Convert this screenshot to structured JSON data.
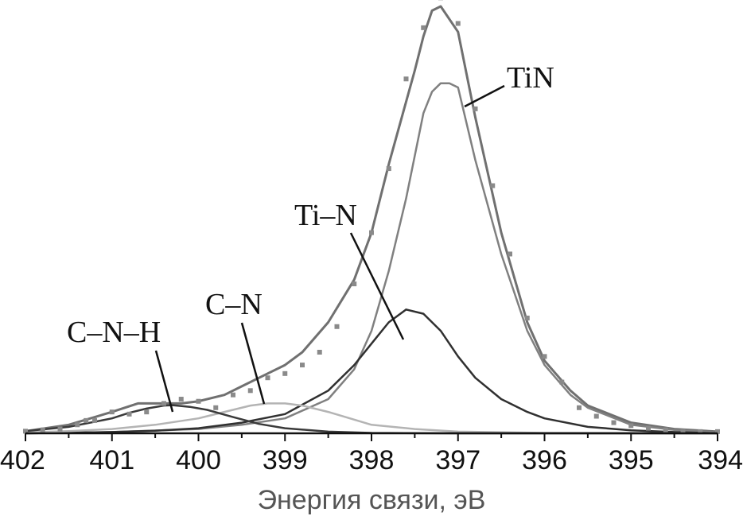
{
  "chart_data": {
    "type": "line",
    "xlabel": "Энергия связи, эВ",
    "ylabel": "",
    "xlim": [
      402,
      394
    ],
    "ylim": [
      0,
      1
    ],
    "grid": false,
    "x_reversed": true,
    "x_ticks": [
      402,
      401,
      400,
      399,
      398,
      397,
      396,
      395,
      394
    ],
    "tick_labels": [
      "402",
      "401",
      "400",
      "399",
      "398",
      "397",
      "396",
      "395",
      "394"
    ],
    "series": [
      {
        "name": "TiN",
        "role": "envelope",
        "color": "#707070",
        "x": [
          402,
          401.5,
          401,
          400.7,
          400.5,
          400.2,
          400,
          399.7,
          399.5,
          399.2,
          399,
          398.8,
          398.5,
          398.2,
          398,
          397.8,
          397.5,
          397.4,
          397.3,
          397.2,
          397.0,
          396.8,
          396.5,
          396.2,
          396,
          395.7,
          395.5,
          395,
          394.5,
          394
        ],
        "values": [
          0.005,
          0.02,
          0.05,
          0.07,
          0.07,
          0.07,
          0.075,
          0.09,
          0.11,
          0.14,
          0.16,
          0.19,
          0.26,
          0.36,
          0.47,
          0.63,
          0.85,
          0.93,
          0.99,
          1.0,
          0.94,
          0.74,
          0.47,
          0.26,
          0.17,
          0.1,
          0.065,
          0.025,
          0.01,
          0.004
        ]
      },
      {
        "name": "",
        "role": "TiN component",
        "color": "#808080",
        "x": [
          402,
          401,
          400,
          399.5,
          399,
          398.5,
          398.2,
          398,
          397.8,
          397.6,
          397.4,
          397.3,
          397.2,
          397.1,
          397.0,
          396.8,
          396.5,
          396.2,
          396,
          395.7,
          395.5,
          395,
          394.5,
          394
        ],
        "values": [
          0.0,
          0.003,
          0.01,
          0.02,
          0.035,
          0.08,
          0.15,
          0.24,
          0.38,
          0.55,
          0.75,
          0.8,
          0.82,
          0.82,
          0.81,
          0.64,
          0.42,
          0.24,
          0.16,
          0.09,
          0.06,
          0.02,
          0.008,
          0.002
        ]
      },
      {
        "name": "Ti–N",
        "role": "component",
        "color": "#303030",
        "x": [
          402,
          401,
          400.5,
          400,
          399.5,
          399,
          398.5,
          398.2,
          398,
          397.8,
          397.6,
          397.4,
          397.2,
          397,
          396.8,
          396.5,
          396.2,
          396,
          395.5,
          395,
          394.5,
          394
        ],
        "values": [
          0.0,
          0.003,
          0.006,
          0.012,
          0.025,
          0.045,
          0.1,
          0.16,
          0.21,
          0.26,
          0.29,
          0.28,
          0.24,
          0.18,
          0.13,
          0.08,
          0.05,
          0.035,
          0.015,
          0.007,
          0.003,
          0.0
        ]
      },
      {
        "name": "C–N",
        "role": "component",
        "color": "#b4b4b4",
        "x": [
          402,
          401.5,
          401,
          400.5,
          400,
          399.7,
          399.4,
          399.2,
          399.0,
          398.8,
          398.5,
          398.2,
          398,
          397.5,
          397,
          396,
          394
        ],
        "values": [
          0.002,
          0.005,
          0.01,
          0.02,
          0.035,
          0.05,
          0.065,
          0.07,
          0.07,
          0.065,
          0.05,
          0.032,
          0.02,
          0.01,
          0.004,
          0.001,
          0.0
        ]
      },
      {
        "name": "C–N–H",
        "role": "component",
        "color": "#3a3a3a",
        "x": [
          402,
          401.5,
          401,
          400.8,
          400.6,
          400.4,
          400.3,
          400.1,
          399.9,
          399.6,
          399.3,
          399,
          398.5,
          398,
          397,
          394
        ],
        "values": [
          0.005,
          0.015,
          0.035,
          0.048,
          0.058,
          0.065,
          0.066,
          0.062,
          0.055,
          0.038,
          0.022,
          0.012,
          0.004,
          0.001,
          0.0,
          0.0
        ]
      },
      {
        "name": "",
        "role": "measured",
        "type": "scatter",
        "color": "#8a8a8a",
        "x": [
          402,
          401.8,
          401.6,
          401.4,
          401.3,
          401.2,
          401.0,
          400.8,
          400.6,
          400.4,
          400.2,
          400.0,
          399.8,
          399.6,
          399.4,
          399.2,
          399.0,
          398.8,
          398.6,
          398.4,
          398.2,
          398.0,
          397.8,
          397.6,
          397.4,
          397.2,
          397.0,
          396.8,
          396.6,
          396.4,
          396.2,
          396.0,
          395.8,
          395.6,
          395.4,
          395.2,
          395.0,
          394.8,
          394.6,
          394.4,
          394.2,
          394.0
        ],
        "values": [
          0.005,
          0.008,
          0.01,
          0.02,
          0.03,
          0.03,
          0.05,
          0.045,
          0.05,
          0.07,
          0.08,
          0.075,
          0.06,
          0.09,
          0.1,
          0.13,
          0.14,
          0.16,
          0.19,
          0.25,
          0.35,
          0.47,
          0.62,
          0.83,
          0.95,
          1.02,
          0.96,
          0.76,
          0.58,
          0.42,
          0.27,
          0.18,
          0.12,
          0.06,
          0.04,
          0.025,
          0.018,
          0.012,
          0.008,
          0.004,
          0.004,
          0.004
        ]
      }
    ],
    "annotations": [
      {
        "text": "TiN",
        "x": 397.0,
        "y": 0.8
      },
      {
        "text": "Ti–N",
        "x": 397.6,
        "y": 0.29
      },
      {
        "text": "C–N",
        "x": 399.2,
        "y": 0.07
      },
      {
        "text": "C–N–H",
        "x": 400.3,
        "y": 0.066
      }
    ]
  }
}
